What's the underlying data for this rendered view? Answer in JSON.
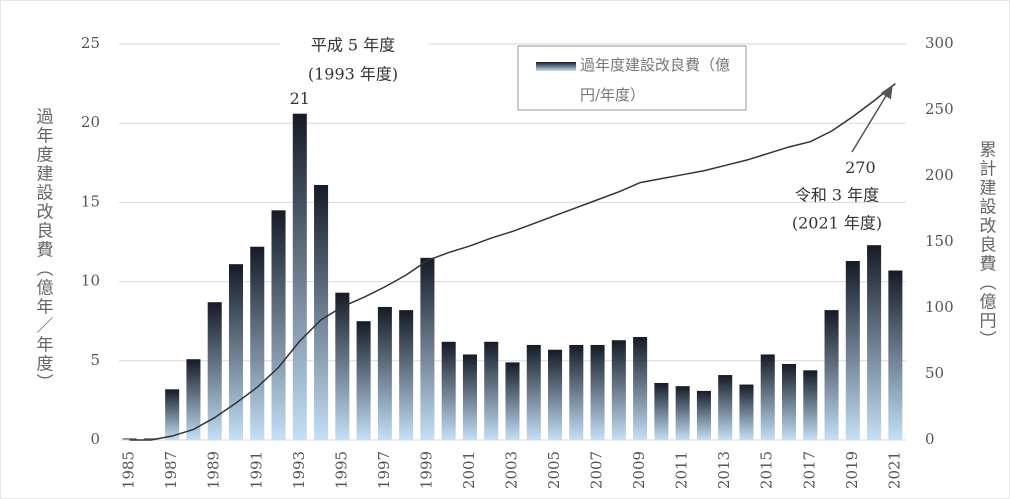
{
  "chart_data": {
    "type": "bar_line",
    "categories": [
      "1985",
      null,
      "1987",
      null,
      "1989",
      null,
      "1991",
      null,
      "1993",
      null,
      "1995",
      null,
      "1997",
      null,
      "1999",
      null,
      "2001",
      null,
      "2003",
      null,
      "2005",
      null,
      "2007",
      null,
      "2009",
      null,
      "2011",
      null,
      "2013",
      null,
      "2015",
      null,
      "2017",
      null,
      "2019",
      null,
      "2021"
    ],
    "series": [
      {
        "name": "過年度建設改良費（億円/年度）",
        "type": "bar",
        "color": "#151b26",
        "values": [
          0.1,
          0.1,
          3.2,
          5.1,
          8.7,
          11.1,
          12.2,
          14.5,
          20.6,
          16.1,
          9.3,
          7.5,
          8.4,
          8.2,
          11.5,
          6.2,
          5.4,
          6.2,
          4.9,
          6.0,
          5.7,
          6.0,
          6.0,
          6.3,
          6.5,
          3.6,
          3.4,
          3.1,
          4.1,
          3.5,
          5.4,
          4.8,
          4.4,
          8.2,
          11.3,
          12.3,
          10.7
        ],
        "value_labels": [
          null,
          null,
          null,
          null,
          null,
          null,
          null,
          null,
          "21",
          null,
          null,
          null,
          null,
          null,
          null,
          null,
          null,
          null,
          null,
          null,
          null,
          null,
          null,
          null,
          null,
          null,
          null,
          null,
          null,
          null,
          null,
          null,
          null,
          null,
          null,
          null,
          null
        ]
      },
      {
        "type": "line",
        "axis": "y2",
        "color": "#333333",
        "values": [
          0,
          0,
          3,
          8,
          17,
          28,
          40,
          55,
          75,
          91,
          101,
          108,
          116,
          125,
          136,
          142,
          147,
          153,
          158,
          164,
          170,
          176,
          182,
          188,
          195,
          198,
          201,
          204,
          208,
          212,
          217,
          222,
          226,
          234,
          245,
          257,
          270
        ],
        "value_labels": [
          null,
          null,
          null,
          null,
          null,
          null,
          null,
          null,
          null,
          null,
          null,
          null,
          null,
          null,
          null,
          null,
          null,
          null,
          null,
          null,
          null,
          null,
          null,
          null,
          null,
          null,
          null,
          null,
          null,
          null,
          null,
          null,
          null,
          null,
          null,
          null,
          270
        ]
      }
    ],
    "ylabel": "過年度建設改良費（億年／年度）",
    "y2label": "累計建設改良費（億円）",
    "ylim": [
      0,
      25
    ],
    "yticks": [
      0,
      5,
      10,
      15,
      20,
      25
    ],
    "y2lim": [
      0,
      300
    ],
    "y2ticks": [
      0,
      50,
      100,
      150,
      200,
      250,
      300
    ],
    "grid": true,
    "annotations": [
      "平成 5 年度",
      "(1993 年度)",
      "令和 3 年度",
      "(2021 年度)"
    ]
  }
}
